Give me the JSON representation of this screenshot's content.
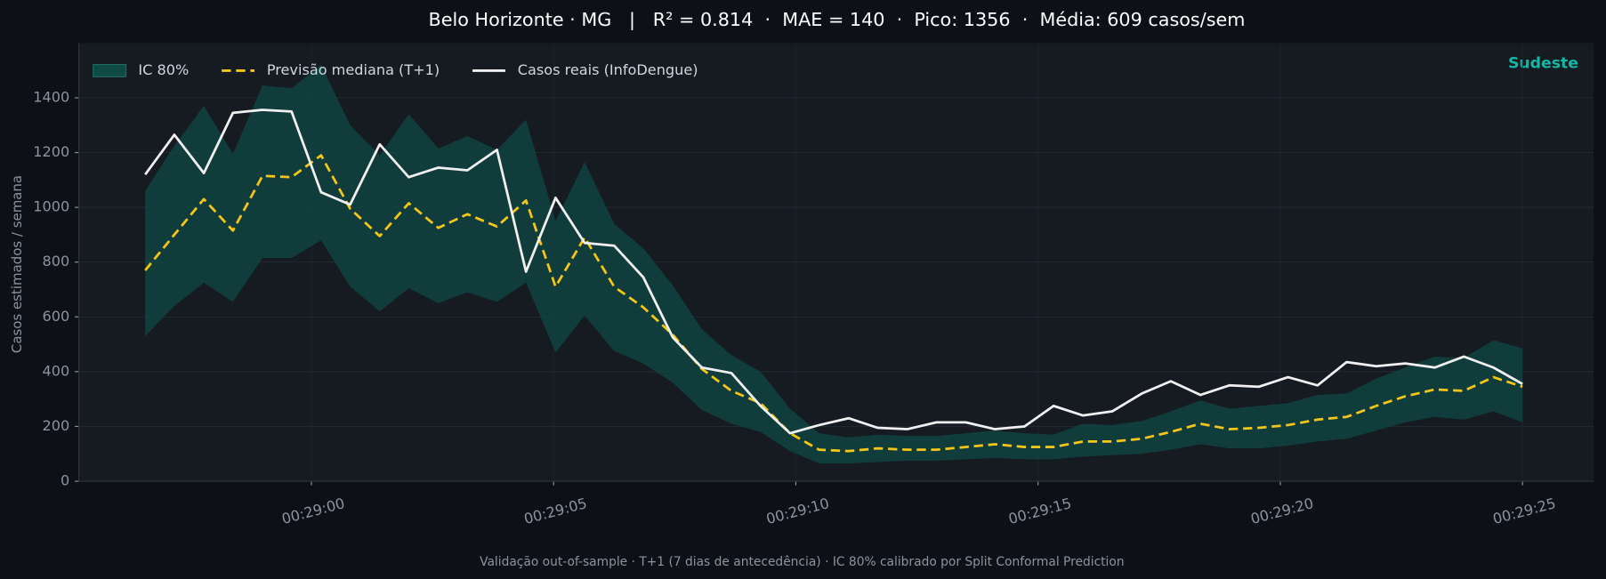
{
  "chart_data": {
    "type": "line",
    "title": "Belo Horizonte · MG   |   R² = 0.814  ·  MAE = 140  ·  Pico: 1356  ·  Média: 609 casos/sem",
    "region": "Sudeste",
    "ylabel": "Casos estimados / semana",
    "footer": "Validação out-of-sample · T+1 (7 dias de antecedência) · IC 80% calibrado por Split Conformal Prediction",
    "x": [
      1736.57,
      1737.17,
      1737.78,
      1738.38,
      1738.99,
      1739.59,
      1740.2,
      1740.8,
      1741.41,
      1742.01,
      1742.62,
      1743.22,
      1743.83,
      1744.43,
      1745.04,
      1745.64,
      1746.25,
      1746.85,
      1747.46,
      1748.06,
      1748.67,
      1749.27,
      1749.88,
      1750.48,
      1751.09,
      1751.69,
      1752.3,
      1752.9,
      1753.51,
      1754.11,
      1754.72,
      1755.32,
      1755.93,
      1756.53,
      1757.14,
      1757.74,
      1758.35,
      1758.95,
      1759.56,
      1760.16,
      1760.77,
      1761.37,
      1761.98,
      1762.58,
      1763.19,
      1763.79,
      1764.4,
      1765.0
    ],
    "band": {
      "name": "IC 80%",
      "color": "#0f4a44",
      "lower": [
        530,
        640,
        725,
        655,
        815,
        815,
        880,
        710,
        620,
        705,
        650,
        690,
        655,
        725,
        470,
        605,
        475,
        430,
        360,
        260,
        210,
        180,
        110,
        65,
        65,
        70,
        75,
        75,
        80,
        85,
        80,
        80,
        90,
        95,
        100,
        115,
        135,
        120,
        120,
        130,
        145,
        155,
        185,
        215,
        235,
        225,
        255,
        215
      ],
      "upper": [
        1060,
        1225,
        1370,
        1195,
        1445,
        1435,
        1520,
        1300,
        1190,
        1340,
        1215,
        1260,
        1210,
        1320,
        950,
        1165,
        940,
        850,
        715,
        555,
        460,
        400,
        265,
        175,
        160,
        170,
        165,
        165,
        175,
        185,
        175,
        170,
        210,
        205,
        220,
        255,
        295,
        265,
        275,
        285,
        315,
        320,
        375,
        415,
        455,
        450,
        515,
        485
      ]
    },
    "series": [
      {
        "name": "Previsão mediana (T+1)",
        "color": "#f5c518",
        "dashed": true,
        "values": [
          770,
          900,
          1030,
          915,
          1115,
          1110,
          1190,
          995,
          895,
          1015,
          925,
          975,
          930,
          1025,
          710,
          890,
          710,
          635,
          535,
          410,
          330,
          285,
          175,
          115,
          110,
          120,
          115,
          115,
          125,
          135,
          125,
          125,
          145,
          145,
          155,
          180,
          210,
          190,
          195,
          205,
          225,
          235,
          275,
          310,
          335,
          330,
          380,
          345
        ]
      },
      {
        "name": "Casos reais (InfoDengue)",
        "color": "#f0f0f0",
        "dashed": false,
        "values": [
          1120,
          1265,
          1125,
          1345,
          1356,
          1350,
          1055,
          1010,
          1230,
          1110,
          1145,
          1135,
          1210,
          765,
          1035,
          870,
          860,
          745,
          525,
          415,
          395,
          275,
          175,
          205,
          230,
          195,
          190,
          215,
          215,
          190,
          200,
          275,
          240,
          255,
          320,
          365,
          315,
          350,
          345,
          380,
          350,
          435,
          420,
          430,
          415,
          455,
          415,
          355
        ]
      }
    ],
    "xlim": [
      1735.2,
      1766.47
    ],
    "xticks": [
      {
        "value": 1740,
        "label": "00:29:00"
      },
      {
        "value": 1745,
        "label": "00:29:05"
      },
      {
        "value": 1750,
        "label": "00:29:10"
      },
      {
        "value": 1755,
        "label": "00:29:15"
      },
      {
        "value": 1760,
        "label": "00:29:20"
      },
      {
        "value": 1765,
        "label": "00:29:25"
      }
    ],
    "ylim": [
      0,
      1600
    ],
    "yticks": [
      0,
      200,
      400,
      600,
      800,
      1000,
      1200,
      1400
    ],
    "grid": true,
    "legend": "upper left"
  }
}
